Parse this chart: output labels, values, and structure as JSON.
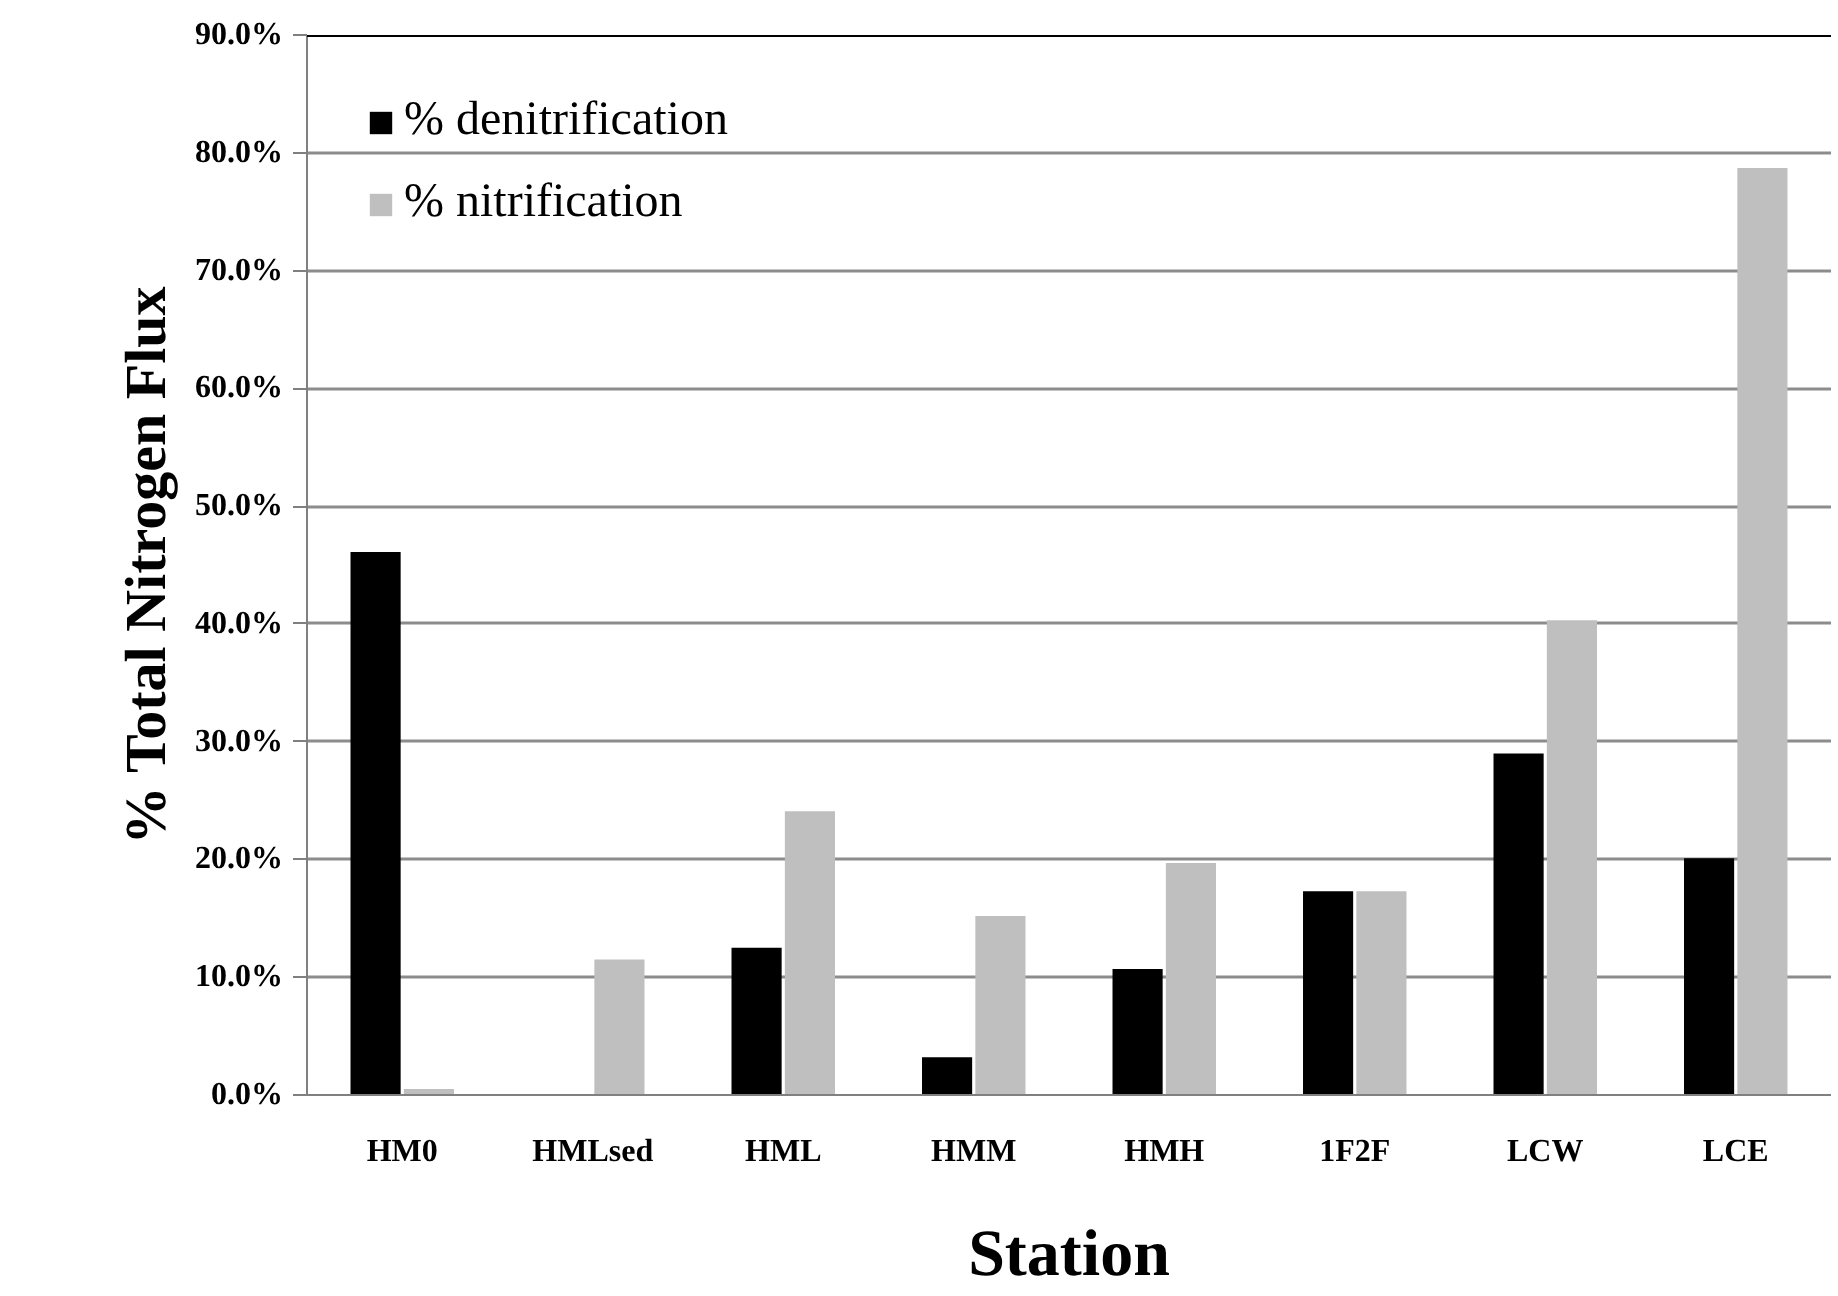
{
  "chart_data": {
    "type": "bar",
    "xlabel": "Station",
    "ylabel": "% Total Nitrogen Flux",
    "categories": [
      "HM0",
      "HMLsed",
      "HML",
      "HMM",
      "HMH",
      "1F2F",
      "LCW",
      "LCE"
    ],
    "series": [
      {
        "name": "% denitrification",
        "color": "#000000",
        "values": [
          46.1,
          0,
          12.5,
          3.2,
          10.7,
          17.3,
          29.0,
          20.1
        ]
      },
      {
        "name": "% nitrification",
        "color": "#bfbfbf",
        "values": [
          0.5,
          11.5,
          24.1,
          15.2,
          19.7,
          17.3,
          40.3,
          78.7
        ]
      }
    ],
    "ylim": [
      0,
      90
    ],
    "yticks": [
      {
        "value": 0,
        "label": "0.0%"
      },
      {
        "value": 10,
        "label": "10.0%"
      },
      {
        "value": 20,
        "label": "20.0%"
      },
      {
        "value": 30,
        "label": "30.0%"
      },
      {
        "value": 40,
        "label": "40.0%"
      },
      {
        "value": 50,
        "label": "50.0%"
      },
      {
        "value": 60,
        "label": "60.0%"
      },
      {
        "value": 70,
        "label": "70.0%"
      },
      {
        "value": 80,
        "label": "80.0%"
      },
      {
        "value": 90,
        "label": "90.0%"
      }
    ],
    "grid": "y",
    "legend": "top left"
  }
}
